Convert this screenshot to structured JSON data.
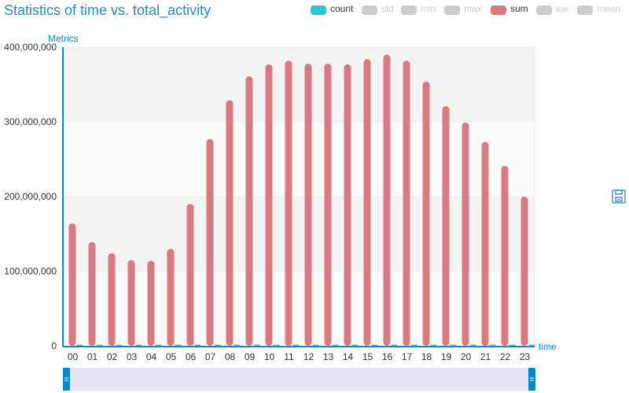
{
  "title": "Statistics of time vs. total_activity",
  "legend": [
    {
      "name": "count",
      "color": "#2ec7c9",
      "active": true
    },
    {
      "name": "std",
      "color": "#cccccc",
      "active": false
    },
    {
      "name": "min",
      "color": "#cccccc",
      "active": false
    },
    {
      "name": "max",
      "color": "#cccccc",
      "active": false
    },
    {
      "name": "sum",
      "color": "#d87a80",
      "active": true
    },
    {
      "name": "var",
      "color": "#cccccc",
      "active": false
    },
    {
      "name": "mean",
      "color": "#cccccc",
      "active": false
    }
  ],
  "toolbox": {
    "save_icon": "save-icon"
  },
  "colors": {
    "axis": "#008acd",
    "sum": "#d87a80",
    "count": "#2ec7c9",
    "text": "#333333",
    "zoom_fill": "#e6e3f5"
  },
  "chart_data": {
    "type": "bar",
    "xlabel": "time",
    "ylabel": "Metrics",
    "ylim": [
      0,
      400000000
    ],
    "yticks": [
      0,
      100000000,
      200000000,
      300000000,
      400000000
    ],
    "ytick_labels": [
      "0",
      "100,000,000",
      "200,000,000",
      "300,000,000",
      "400,000,000"
    ],
    "categories": [
      "00",
      "01",
      "02",
      "03",
      "04",
      "05",
      "06",
      "07",
      "08",
      "09",
      "10",
      "11",
      "12",
      "13",
      "14",
      "15",
      "16",
      "17",
      "18",
      "19",
      "20",
      "21",
      "22",
      "23"
    ],
    "grid": true,
    "legend_position": "top-right",
    "series": [
      {
        "name": "count",
        "values": [
          480000,
          400000,
          360000,
          340000,
          330000,
          370000,
          540000,
          780000,
          930000,
          1020000,
          1070000,
          1080000,
          1070000,
          1070000,
          1070000,
          1080000,
          1100000,
          1080000,
          1000000,
          910000,
          840000,
          770000,
          680000,
          570000
        ]
      },
      {
        "name": "sum",
        "values": [
          164000000,
          139000000,
          124000000,
          115000000,
          114000000,
          130000000,
          190000000,
          277000000,
          329000000,
          361000000,
          377000000,
          382000000,
          378000000,
          378000000,
          377000000,
          384000000,
          390000000,
          382000000,
          354000000,
          321000000,
          299000000,
          273000000,
          241000000,
          200000000
        ]
      }
    ]
  }
}
